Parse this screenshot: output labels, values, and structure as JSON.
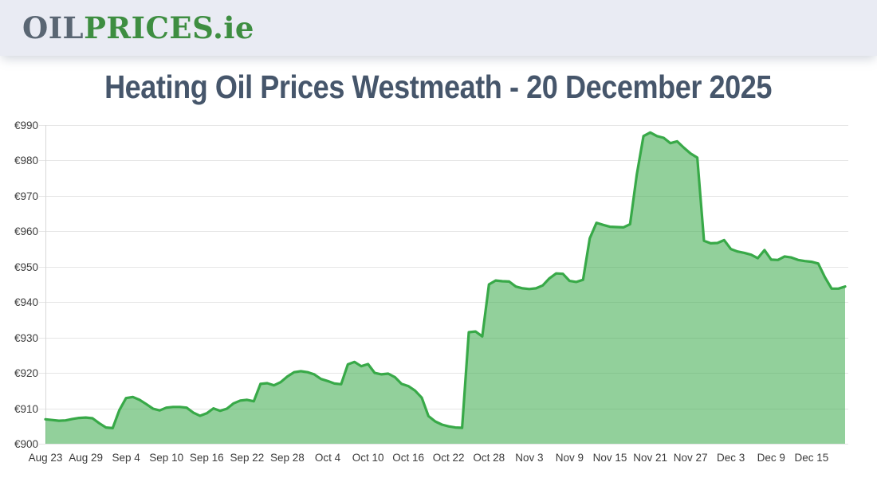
{
  "site": {
    "logo_oil": "OIL",
    "logo_prices": "PRICES",
    "logo_ie": ".ie"
  },
  "title": "Heating Oil Prices Westmeath - 20 December 2025",
  "theme": {
    "header_bg": "#e9ebf3",
    "logo_grey": "#5a6673",
    "brand_green": "#3e8e41",
    "title_color": "#46566b",
    "page_bg": "#ffffff"
  },
  "chart_data": {
    "type": "area",
    "title": "Heating Oil Prices Westmeath - 20 December 2025",
    "region": "Westmeath",
    "currency_prefix": "€",
    "ylim": [
      900,
      990
    ],
    "y_ticks": [
      900,
      910,
      920,
      930,
      940,
      950,
      960,
      970,
      980,
      990
    ],
    "x_tick_labels": [
      "Aug 23",
      "Aug 29",
      "Sep 4",
      "Sep 10",
      "Sep 16",
      "Sep 22",
      "Sep 28",
      "Oct 4",
      "Oct 10",
      "Oct 16",
      "Oct 22",
      "Oct 28",
      "Nov 3",
      "Nov 9",
      "Nov 15",
      "Nov 21",
      "Nov 27",
      "Dec 3",
      "Dec 9",
      "Dec 15"
    ],
    "x_tick_interval_days": 6,
    "x_start_label": "Aug 23",
    "x_end_label": "Dec 20",
    "grid": true,
    "legend_position": "none",
    "values": [
      906.9,
      906.7,
      906.5,
      906.6,
      907.0,
      907.3,
      907.4,
      907.2,
      905.8,
      904.6,
      904.4,
      909.5,
      912.9,
      913.2,
      912.4,
      911.2,
      909.9,
      909.4,
      910.2,
      910.4,
      910.4,
      910.2,
      908.8,
      907.9,
      908.6,
      910.0,
      909.3,
      909.9,
      911.4,
      912.2,
      912.4,
      912.0,
      916.9,
      917.1,
      916.5,
      917.4,
      919.0,
      920.2,
      920.5,
      920.2,
      919.6,
      918.3,
      917.7,
      917.0,
      916.8,
      922.4,
      923.1,
      921.9,
      922.5,
      920.0,
      919.6,
      919.8,
      918.8,
      916.9,
      916.3,
      915.0,
      913.0,
      907.8,
      906.3,
      905.4,
      904.9,
      904.6,
      904.5,
      931.5,
      931.7,
      930.3,
      945.0,
      946.1,
      945.9,
      945.8,
      944.4,
      943.9,
      943.7,
      943.9,
      944.7,
      946.7,
      948.1,
      948.0,
      946.0,
      945.7,
      946.3,
      958.0,
      962.4,
      961.8,
      961.3,
      961.2,
      961.1,
      962.0,
      976.0,
      986.9,
      987.9,
      986.9,
      986.4,
      984.9,
      985.4,
      983.6,
      982.0,
      980.8,
      957.3,
      956.6,
      956.7,
      957.5,
      955.0,
      954.3,
      953.9,
      953.4,
      952.4,
      954.7,
      952.0,
      951.9,
      952.9,
      952.6,
      951.9,
      951.6,
      951.4,
      950.9,
      947.0,
      943.8,
      943.8,
      944.4
    ],
    "colors": {
      "line": "#38a948",
      "fill": "rgba(56,169,72,0.55)",
      "grid": "#e6e6e6",
      "axis": "#d8d8d8",
      "tick_text": "#3c3c3c"
    }
  }
}
